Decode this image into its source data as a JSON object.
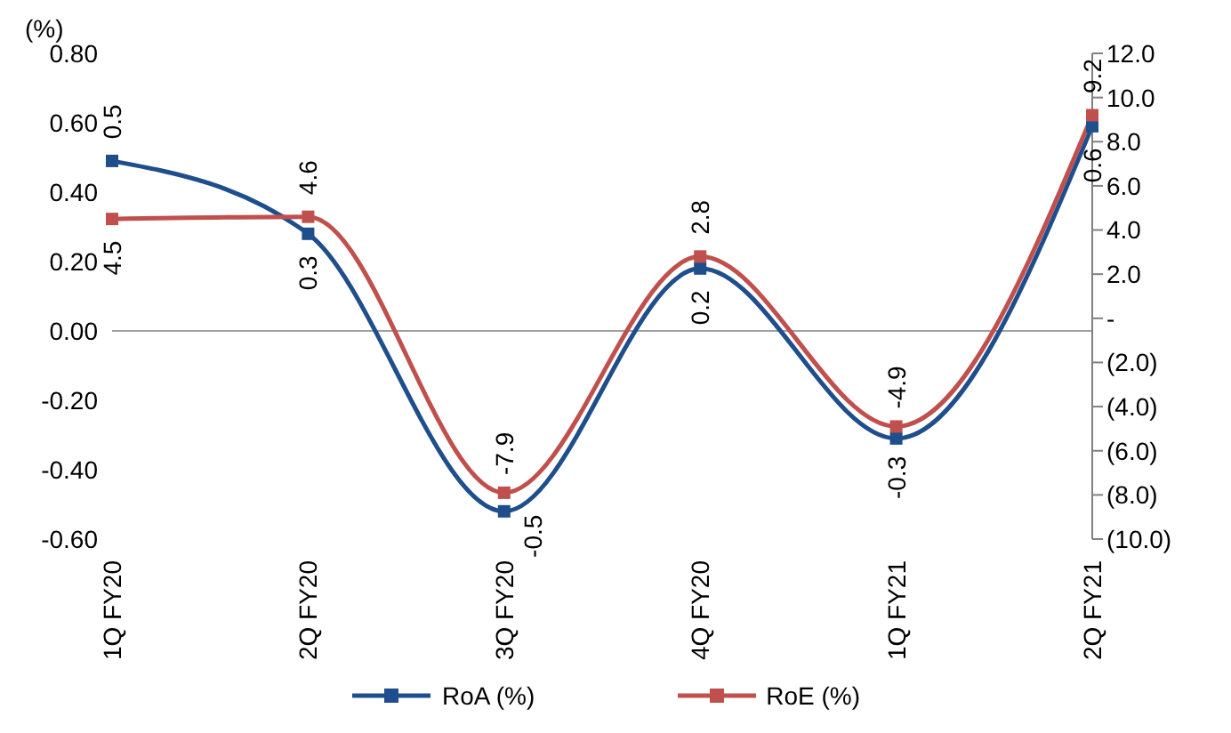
{
  "chart_data": {
    "type": "line",
    "ylabel": "(%)",
    "categories": [
      "1Q FY20",
      "2Q FY20",
      "3Q FY20",
      "4Q FY20",
      "1Q FY21",
      "2Q FY21"
    ],
    "series": [
      {
        "name": "RoA (%)",
        "color": "#1f4e8c",
        "values": [
          0.49,
          0.28,
          -0.52,
          0.18,
          -0.31,
          0.59
        ],
        "value_labels": [
          "0.5",
          "0.3",
          "-0.5",
          "0.2",
          "-0.3",
          "0.6"
        ]
      },
      {
        "name": "RoE (%)",
        "color": "#c0504d",
        "axis": "y2",
        "values": [
          4.5,
          4.6,
          -7.9,
          2.8,
          -4.9,
          9.2
        ],
        "value_labels": [
          "4.5",
          "4.6",
          "-7.9",
          "2.8",
          "-4.9",
          "9.2"
        ]
      }
    ],
    "ylim": [
      -0.6,
      0.8
    ],
    "yticks": [
      {
        "value": -0.6,
        "label": "-0.60"
      },
      {
        "value": -0.4,
        "label": "-0.40"
      },
      {
        "value": -0.2,
        "label": "-0.20"
      },
      {
        "value": 0,
        "label": "0.00"
      },
      {
        "value": 0.2,
        "label": "0.20"
      },
      {
        "value": 0.4,
        "label": "0.40"
      },
      {
        "value": 0.6,
        "label": "0.60"
      },
      {
        "value": 0.8,
        "label": "0.80"
      }
    ],
    "y2lim": [
      -10,
      12
    ],
    "y2ticks": [
      {
        "value": -10,
        "label": "(10.0)"
      },
      {
        "value": -8,
        "label": "(8.0)"
      },
      {
        "value": -6,
        "label": "(6.0)"
      },
      {
        "value": -4,
        "label": "(4.0)"
      },
      {
        "value": -2,
        "label": "(2.0)"
      },
      {
        "value": 0,
        "label": "-"
      },
      {
        "value": 2,
        "label": "2.0"
      },
      {
        "value": 4,
        "label": "4.0"
      },
      {
        "value": 6,
        "label": "6.0"
      },
      {
        "value": 8,
        "label": "8.0"
      },
      {
        "value": 10,
        "label": "10.0"
      },
      {
        "value": 12,
        "label": "12.0"
      }
    ],
    "ref_lines": [
      {
        "axis": "y",
        "value": 0,
        "color": "#a0a0a0"
      }
    ],
    "marker": "square",
    "line_style": "solid",
    "legend": "bottom",
    "grid": false
  }
}
